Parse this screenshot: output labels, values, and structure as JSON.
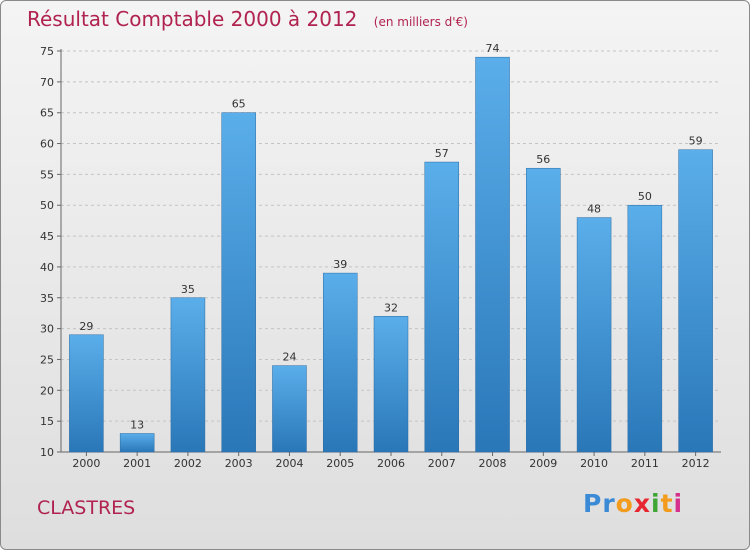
{
  "chart_data": {
    "type": "bar",
    "title": "Résultat Comptable 2000 à 2012",
    "subtitle": "(en milliers d'€)",
    "categories": [
      "2000",
      "2001",
      "2002",
      "2003",
      "2004",
      "2005",
      "2006",
      "2007",
      "2008",
      "2009",
      "2010",
      "2011",
      "2012"
    ],
    "values": [
      29,
      13,
      35,
      65,
      24,
      39,
      32,
      57,
      74,
      56,
      48,
      50,
      59
    ],
    "ylim": [
      10,
      75
    ],
    "yticks": [
      10,
      15,
      20,
      25,
      30,
      35,
      40,
      45,
      50,
      55,
      60,
      65,
      70,
      75
    ],
    "xlabel": "",
    "ylabel": "",
    "grid": true,
    "bar_color": "#3d8fd4"
  },
  "location": "CLASTRES",
  "logo": {
    "letters": [
      "P",
      "r",
      "o",
      "x",
      "i",
      "t",
      "i"
    ],
    "colors": [
      "#3a8ad6",
      "#3a8ad6",
      "#f29b1c",
      "#e8262f",
      "#3fa535",
      "#f29b1c",
      "#d62f8c"
    ]
  }
}
